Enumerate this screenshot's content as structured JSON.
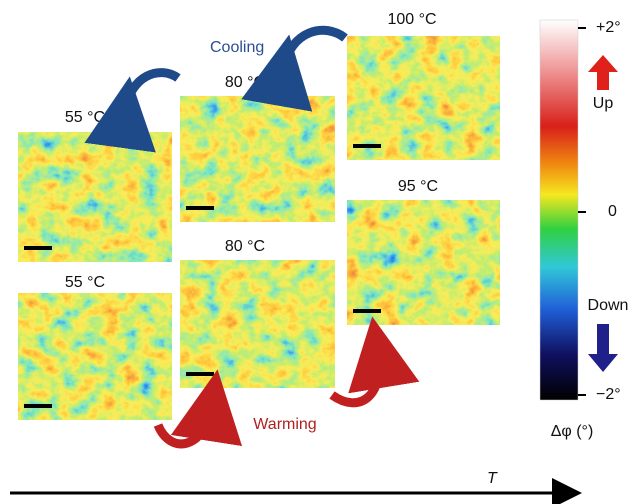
{
  "panels": [
    {
      "label": "55 °C"
    },
    {
      "label": "80 °C"
    },
    {
      "label": "100 °C"
    },
    {
      "label": "95 °C"
    },
    {
      "label": "80 °C"
    },
    {
      "label": "55 °C"
    }
  ],
  "annotations": {
    "cooling": "Cooling",
    "warming": "Warming",
    "axis": "T"
  },
  "colorbar": {
    "top": "+2°",
    "middle": "0",
    "bottom": "−2°",
    "up": "Up",
    "down": "Down",
    "title": "Δφ (°)"
  }
}
